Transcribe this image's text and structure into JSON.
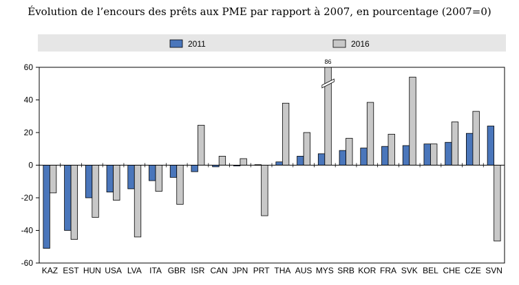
{
  "chart_data": {
    "type": "bar",
    "title": "Évolution de l’encours des prêts aux PME par rapport à 2007, en pourcentage (2007=0)",
    "categories": [
      "KAZ",
      "EST",
      "HUN",
      "USA",
      "LVA",
      "ITA",
      "GBR",
      "ISR",
      "CAN",
      "JPN",
      "PRT",
      "THA",
      "AUS",
      "MYS",
      "SRB",
      "KOR",
      "FRA",
      "SVK",
      "BEL",
      "CHE",
      "CZE",
      "SVN"
    ],
    "series": [
      {
        "name": "2011",
        "color": "#4a76bb",
        "values": [
          -51,
          -40,
          -20,
          -16.5,
          -14.5,
          -9.5,
          -7.5,
          -4,
          -1,
          -0.5,
          0.3,
          2,
          5.5,
          7,
          9,
          10.5,
          11.5,
          12,
          13,
          14,
          19.5,
          24
        ]
      },
      {
        "name": "2016",
        "color": "#c8c8c8",
        "values": [
          -17,
          -45.5,
          -32,
          -21.5,
          -44,
          -16,
          -24,
          24.5,
          5.5,
          4,
          -31,
          38,
          20,
          86,
          16.5,
          38.5,
          19,
          54,
          13,
          26.5,
          33,
          -46.5
        ]
      }
    ],
    "ylim": [
      -60,
      60
    ],
    "yticks": [
      60,
      40,
      20,
      0,
      -20,
      -40,
      -60
    ],
    "axis_break": {
      "category": "MYS",
      "series": "2016",
      "label": "86"
    },
    "legend": {
      "position": "top-center"
    },
    "grid": false
  }
}
